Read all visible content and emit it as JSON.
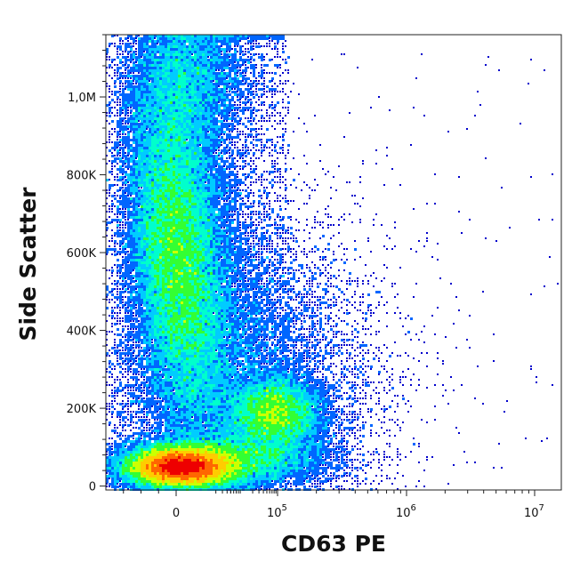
{
  "chart_data": {
    "type": "scatter",
    "subtype": "flow-cytometry density dot plot (pseudocolor)",
    "title": "",
    "xlabel": "CD63 PE",
    "ylabel": "Side Scatter",
    "x_scale": "biexponential (linear near 0, log above ~10^3)",
    "y_scale": "linear",
    "xlim": [
      -20000,
      15000000
    ],
    "ylim": [
      -10000,
      1160000
    ],
    "x_ticks": [
      {
        "value": 0,
        "base": "0",
        "exp": ""
      },
      {
        "value": 100000,
        "base": "10",
        "exp": "5"
      },
      {
        "value": 1000000,
        "base": "10",
        "exp": "6"
      },
      {
        "value": 10000000,
        "base": "10",
        "exp": "7"
      }
    ],
    "y_ticks": [
      {
        "value": 0,
        "label": "0"
      },
      {
        "value": 200000,
        "label": "200K"
      },
      {
        "value": 400000,
        "label": "400K"
      },
      {
        "value": 600000,
        "label": "600K"
      },
      {
        "value": 800000,
        "label": "800K"
      },
      {
        "value": 1000000,
        "label": "1,0M"
      }
    ],
    "color_scale": [
      "#0000cc",
      "#0066ff",
      "#00ccff",
      "#00ffcc",
      "#33ff33",
      "#ccff00",
      "#ffcc00",
      "#ff6600",
      "#ee0000"
    ],
    "populations": [
      {
        "name": "",
        "x_center": 100,
        "y_center": 40000,
        "density": "highest",
        "color": "#ee0000"
      },
      {
        "name": "",
        "x_center": 0,
        "y_center": 600000,
        "density": "high",
        "color": "#99ff33"
      },
      {
        "name": "",
        "x_center": 100000,
        "y_center": 180000,
        "density": "medium",
        "color": "#33ffcc"
      },
      {
        "name": "",
        "x_center": 5000,
        "y_center": 60000,
        "density": "medium",
        "color": "#00ffff"
      }
    ],
    "grid": false,
    "legend": "none"
  }
}
